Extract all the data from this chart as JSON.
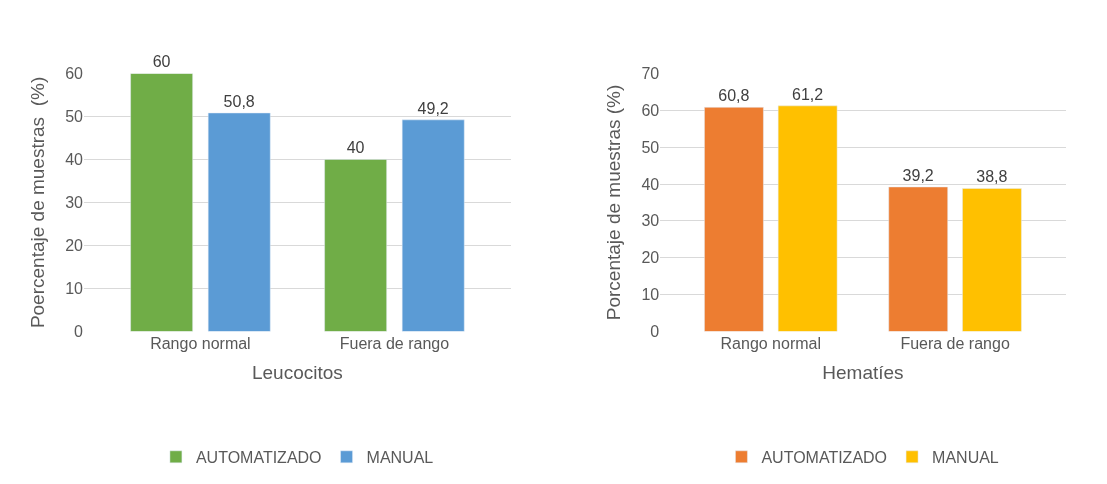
{
  "chart_data": [
    {
      "type": "bar",
      "xlabel": "Leucocitos",
      "ylabel": "Poercentaje de muestras  (%)",
      "categories": [
        "Rango normal",
        "Fuera de rango"
      ],
      "series": [
        {
          "name": "AUTOMATIZADO",
          "color": "#70ad47",
          "values": [
            60,
            40
          ],
          "value_labels": [
            "60",
            "40"
          ]
        },
        {
          "name": "MANUAL",
          "color": "#5b9bd5",
          "values": [
            50.8,
            49.2
          ],
          "value_labels": [
            "50,8",
            "49,2"
          ]
        }
      ],
      "ylim": [
        0,
        60
      ],
      "yticks": [
        0,
        10,
        20,
        30,
        40,
        50,
        60
      ],
      "grid": "y",
      "legend": "bottom"
    },
    {
      "type": "bar",
      "xlabel": "Hematíes",
      "ylabel": "Porcentaje de muestras (%)",
      "categories": [
        "Rango normal",
        "Fuera de rango"
      ],
      "series": [
        {
          "name": "AUTOMATIZADO",
          "color": "#ed7d31",
          "values": [
            60.8,
            39.2
          ],
          "value_labels": [
            "60,8",
            "39,2"
          ]
        },
        {
          "name": "MANUAL",
          "color": "#ffc000",
          "values": [
            61.2,
            38.8
          ],
          "value_labels": [
            "61,2",
            "38,8"
          ]
        }
      ],
      "ylim": [
        0,
        70
      ],
      "yticks": [
        0,
        10,
        20,
        30,
        40,
        50,
        60,
        70
      ],
      "grid": "y",
      "legend": "bottom"
    }
  ]
}
